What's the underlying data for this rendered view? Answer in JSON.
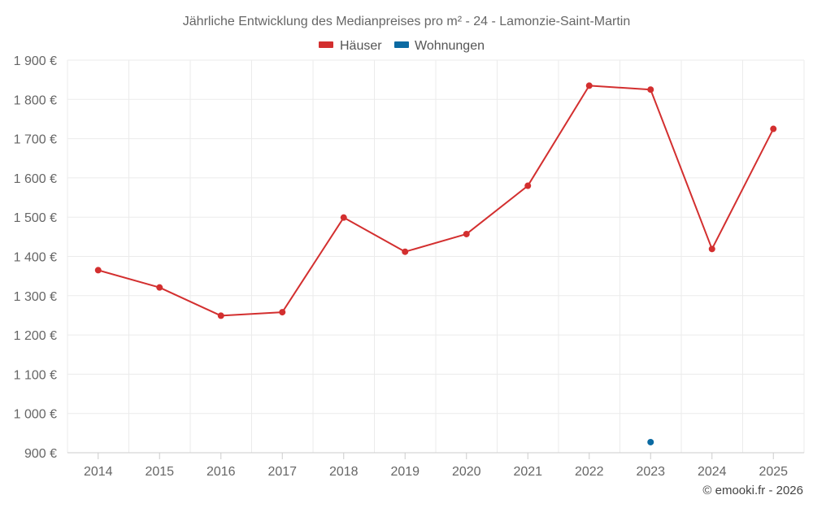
{
  "chart_data": {
    "type": "line",
    "title": "Jährliche Entwicklung des Medianpreises pro m² - 24 - Lamonzie-Saint-Martin",
    "categories": [
      "2014",
      "2015",
      "2016",
      "2017",
      "2018",
      "2019",
      "2020",
      "2021",
      "2022",
      "2023",
      "2024",
      "2025"
    ],
    "series": [
      {
        "name": "Häuser",
        "color": "#d32f2f",
        "values": [
          1365,
          1321,
          1249,
          1258,
          1499,
          1412,
          1457,
          1580,
          1835,
          1825,
          1419,
          1725
        ]
      },
      {
        "name": "Wohnungen",
        "color": "#0b6aa2",
        "values": [
          null,
          null,
          null,
          null,
          null,
          null,
          null,
          null,
          null,
          927,
          null,
          null
        ]
      }
    ],
    "ylim": [
      900,
      1900
    ],
    "yticks": [
      900,
      1000,
      1100,
      1200,
      1300,
      1400,
      1500,
      1600,
      1700,
      1800,
      1900
    ],
    "y_tick_labels": [
      "900 €",
      "1 000 €",
      "1 100 €",
      "1 200 €",
      "1 300 €",
      "1 400 €",
      "1 500 €",
      "1 600 €",
      "1 700 €",
      "1 800 €",
      "1 900 €"
    ],
    "grid": true,
    "legend_position": "top-center",
    "xlabel": "",
    "ylabel": ""
  },
  "credit": "© emooki.fr - 2026"
}
